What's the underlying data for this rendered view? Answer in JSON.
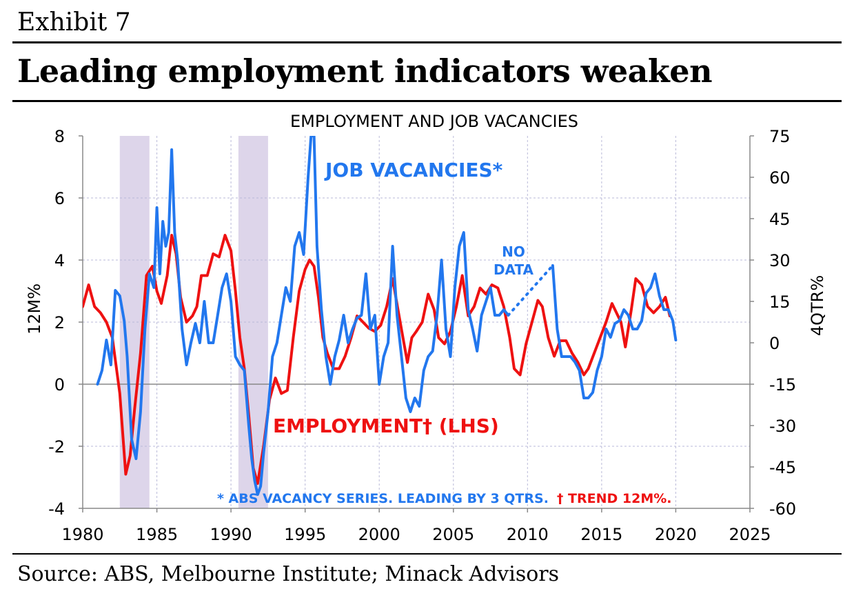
{
  "header": {
    "exhibit": "Exhibit 7",
    "title": "Leading employment indicators weaken"
  },
  "footer": {
    "source": "Source: ABS, Melbourne Institute; Minack Advisors"
  },
  "colors": {
    "employment": "#ee1111",
    "vacancies": "#2277ee",
    "recession": "#ddd5ea",
    "grid": "#b9b9d8"
  },
  "chart_data": {
    "type": "line",
    "title": "EMPLOYMENT AND JOB VACANCIES",
    "ylabel_left": "12M%",
    "ylabel_right": "4QTR%",
    "xlim": [
      1980,
      2025
    ],
    "ylim_left": [
      -4,
      8
    ],
    "ylim_right": [
      -60,
      75
    ],
    "x_ticks": [
      1980,
      1985,
      1990,
      1995,
      2000,
      2005,
      2010,
      2015,
      2020,
      2025
    ],
    "y_ticks_left": [
      -4,
      -2,
      0,
      2,
      4,
      6,
      8
    ],
    "y_ticks_right": [
      -60,
      -45,
      -30,
      -15,
      0,
      15,
      30,
      45,
      60,
      75
    ],
    "tick_labels_left": [
      "-4",
      "-2",
      "0",
      "2",
      "4",
      "6",
      "8"
    ],
    "tick_labels_right": [
      "-60",
      "-45",
      "-30",
      "-15",
      "0",
      "15",
      "30",
      "45",
      "60",
      "75"
    ],
    "tick_labels_x": [
      "1980",
      "1985",
      "1990",
      "1995",
      "2000",
      "2005",
      "2010",
      "2015",
      "2020",
      "2025"
    ],
    "recession_bands": [
      [
        1982.5,
        1984.5
      ],
      [
        1990.5,
        1992.5
      ]
    ],
    "annotations": {
      "vacancies_label": "JOB VACANCIES*",
      "employment_label": "EMPLOYMENT† (LHS)",
      "no_data_1": "NO",
      "no_data_2": "DATA",
      "footnote_blue": "* ABS VACANCY SERIES.  LEADING BY 3 QTRS.",
      "footnote_red": "† TREND 12M%."
    },
    "series": [
      {
        "name": "Employment (LHS)",
        "axis": "left",
        "x": [
          1980.0,
          1980.4,
          1980.8,
          1981.2,
          1981.6,
          1982.0,
          1982.5,
          1982.9,
          1983.2,
          1983.5,
          1983.9,
          1984.3,
          1984.7,
          1985.0,
          1985.3,
          1985.7,
          1986.0,
          1986.3,
          1986.6,
          1987.0,
          1987.4,
          1987.7,
          1988.0,
          1988.4,
          1988.8,
          1989.2,
          1989.6,
          1990.0,
          1990.3,
          1990.6,
          1990.9,
          1991.2,
          1991.5,
          1991.8,
          1992.2,
          1992.6,
          1993.0,
          1993.4,
          1993.8,
          1994.2,
          1994.6,
          1995.0,
          1995.3,
          1995.6,
          1995.9,
          1996.2,
          1996.5,
          1996.9,
          1997.3,
          1997.7,
          1998.1,
          1998.5,
          1998.9,
          1999.3,
          1999.7,
          2000.1,
          2000.5,
          2000.9,
          2001.3,
          2001.6,
          2001.9,
          2002.2,
          2002.5,
          2002.9,
          2003.3,
          2003.7,
          2004.0,
          2004.4,
          2004.8,
          2005.2,
          2005.6,
          2006.0,
          2006.4,
          2006.8,
          2007.2,
          2007.6,
          2008.0,
          2008.4,
          2008.8,
          2009.1,
          2009.5,
          2009.9,
          2010.3,
          2010.7,
          2011.0,
          2011.4,
          2011.8,
          2012.2,
          2012.6,
          2013.0,
          2013.4,
          2013.8,
          2014.1,
          2014.5,
          2014.9,
          2015.3,
          2015.7,
          2016.0,
          2016.3,
          2016.6,
          2017.0,
          2017.3,
          2017.7,
          2018.1,
          2018.5,
          2018.9,
          2019.3,
          2019.6
        ],
        "values": [
          2.5,
          3.2,
          2.5,
          2.3,
          2.0,
          1.5,
          -0.3,
          -2.9,
          -2.3,
          -0.8,
          1.0,
          3.5,
          3.8,
          3.0,
          2.6,
          3.5,
          4.8,
          4.2,
          2.8,
          2.0,
          2.2,
          2.5,
          3.5,
          3.5,
          4.2,
          4.1,
          4.8,
          4.3,
          3.0,
          1.5,
          0.5,
          -1.0,
          -2.7,
          -3.2,
          -2.0,
          -0.5,
          0.2,
          -0.3,
          -0.2,
          1.5,
          3.0,
          3.7,
          4.0,
          3.8,
          2.8,
          1.5,
          1.0,
          0.5,
          0.5,
          0.9,
          1.5,
          2.2,
          2.0,
          1.8,
          1.7,
          1.9,
          2.5,
          3.4,
          2.3,
          1.5,
          0.7,
          1.5,
          1.7,
          2.0,
          2.9,
          2.4,
          1.5,
          1.3,
          1.7,
          2.5,
          3.5,
          2.2,
          2.5,
          3.1,
          2.9,
          3.2,
          3.1,
          2.5,
          1.5,
          0.5,
          0.3,
          1.3,
          2.0,
          2.7,
          2.5,
          1.5,
          0.9,
          1.4,
          1.4,
          1.0,
          0.7,
          0.3,
          0.5,
          1.0,
          1.5,
          2.0,
          2.6,
          2.3,
          2.0,
          1.2,
          2.4,
          3.4,
          3.2,
          2.5,
          2.3,
          2.5,
          2.8,
          2.2
        ]
      },
      {
        "name": "Job vacancies (RHS)",
        "axis": "right",
        "x": [
          1981.0,
          1981.3,
          1981.6,
          1981.9,
          1982.2,
          1982.5,
          1982.8,
          1983.0,
          1983.3,
          1983.6,
          1983.9,
          1984.2,
          1984.5,
          1984.8,
          1985.0,
          1985.2,
          1985.4,
          1985.6,
          1985.8,
          1986.0,
          1986.2,
          1986.4,
          1986.7,
          1987.0,
          1987.3,
          1987.6,
          1987.9,
          1988.2,
          1988.5,
          1988.8,
          1989.1,
          1989.4,
          1989.7,
          1990.0,
          1990.3,
          1990.6,
          1990.9,
          1991.2,
          1991.4,
          1991.6,
          1991.8,
          1992.0,
          1992.2,
          1992.5,
          1992.8,
          1993.1,
          1993.4,
          1993.7,
          1994.0,
          1994.3,
          1994.6,
          1994.9,
          1995.2,
          1995.4,
          1995.6,
          1995.8,
          1996.1,
          1996.4,
          1996.7,
          1997.0,
          1997.3,
          1997.6,
          1997.9,
          1998.2,
          1998.5,
          1998.8,
          1999.1,
          1999.4,
          1999.7,
          2000.0,
          2000.3,
          2000.6,
          2000.9,
          2001.2,
          2001.5,
          2001.8,
          2002.1,
          2002.4,
          2002.7,
          2003.0,
          2003.3,
          2003.6,
          2003.9,
          2004.2,
          2004.5,
          2004.8,
          2005.1,
          2005.4,
          2005.7,
          2006.0,
          2006.3,
          2006.6,
          2006.9,
          2007.2,
          2007.5,
          2007.8,
          2008.1,
          2008.4,
          2008.7
        ],
        "values": [
          -15,
          -10,
          1,
          -8,
          19,
          17,
          8,
          -5,
          -35,
          -42,
          -25,
          5,
          25,
          20,
          49,
          25,
          44,
          35,
          40,
          70,
          40,
          30,
          5,
          -8,
          0,
          7,
          0,
          15,
          0,
          0,
          10,
          20,
          25,
          15,
          -5,
          -8,
          -10,
          -30,
          -42,
          -50,
          -55,
          -52,
          -40,
          -25,
          -5,
          0,
          10,
          20,
          15,
          35,
          40,
          32,
          60,
          75,
          75,
          35,
          12,
          -5,
          -15,
          -5,
          1,
          10,
          0,
          5,
          9,
          10,
          25,
          5,
          10,
          -15,
          -5,
          0,
          35,
          10,
          -5,
          -20,
          -25,
          -20,
          -23,
          -10,
          -5,
          -3,
          10,
          30,
          5,
          -5,
          20,
          35,
          40,
          12,
          5,
          -3,
          10,
          15,
          20,
          10,
          10,
          12,
          10
        ]
      },
      {
        "name": "Job vacancies (RHS) resumed",
        "axis": "right",
        "x": [
          2011.7,
          2012.0,
          2012.3,
          2012.6,
          2012.9,
          2013.2,
          2013.5,
          2013.8,
          2014.1,
          2014.4,
          2014.7,
          2015.0,
          2015.3,
          2015.6,
          2015.9,
          2016.2,
          2016.5,
          2016.8,
          2017.1,
          2017.4,
          2017.7,
          2018.0,
          2018.3,
          2018.6,
          2018.9,
          2019.2,
          2019.5,
          2019.8,
          2020.0
        ],
        "values": [
          28,
          5,
          -5,
          -5,
          -5,
          -7,
          -10,
          -20,
          -20,
          -18,
          -10,
          -5,
          5,
          2,
          7,
          8,
          12,
          10,
          5,
          5,
          8,
          18,
          20,
          25,
          17,
          12,
          12,
          8,
          1
        ]
      }
    ],
    "no_data_gap": {
      "x": [
        2008.7,
        2011.7
      ],
      "values": [
        10,
        28
      ]
    }
  }
}
